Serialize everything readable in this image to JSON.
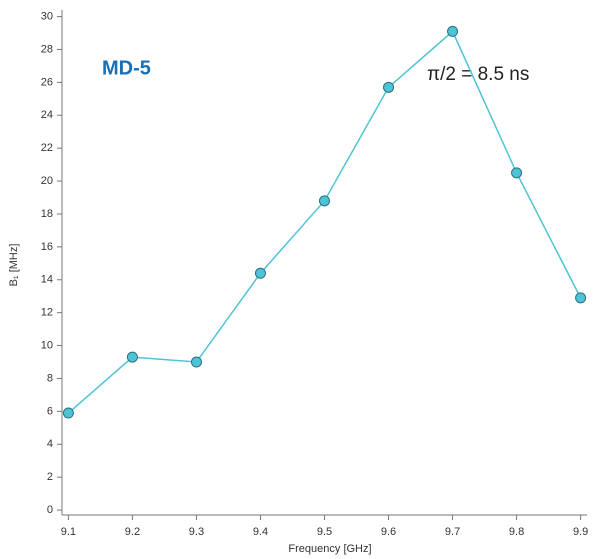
{
  "chart_data": {
    "type": "line",
    "x_label": "Frequency [GHz]",
    "y_label": "B₁ [MHz]",
    "annotations": [
      "MD-5",
      "π/2 = 8.5 ns"
    ],
    "x": [
      9.1,
      9.2,
      9.3,
      9.4,
      9.5,
      9.6,
      9.7,
      9.8,
      9.9
    ],
    "series": [
      {
        "name": "B1",
        "color": "#4fc3d6",
        "values": [
          5.9,
          9.3,
          9.0,
          14.4,
          18.8,
          25.7,
          29.1,
          20.5,
          12.9
        ]
      }
    ],
    "xlim": [
      9.09,
      9.91
    ],
    "ylim": [
      -0.3,
      30.4
    ],
    "xticks": [
      9.1,
      9.2,
      9.3,
      9.4,
      9.5,
      9.6,
      9.7,
      9.8,
      9.9
    ],
    "yticks": [
      0,
      2,
      4,
      6,
      8,
      10,
      12,
      14,
      16,
      18,
      20,
      22,
      24,
      26,
      28,
      30
    ],
    "grid": false
  }
}
